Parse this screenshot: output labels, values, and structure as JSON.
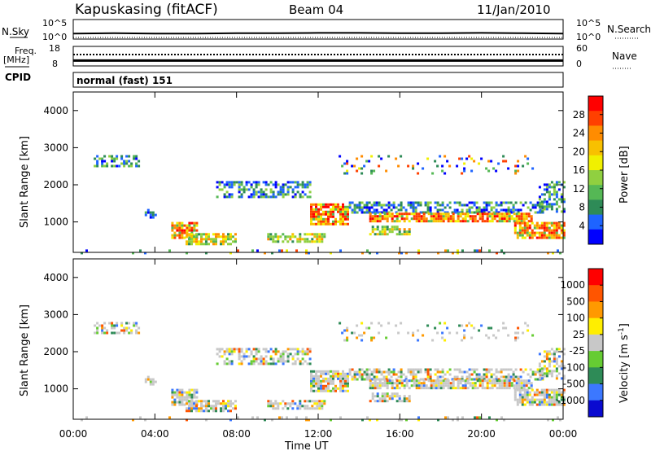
{
  "header": {
    "station": "Kapuskasing (fitACF)",
    "beam": "Beam 04",
    "date": "11/Jan/2010"
  },
  "colors": {
    "power": [
      "#0000ff",
      "#1e64ff",
      "#2e8b57",
      "#55b855",
      "#90d040",
      "#f0f000",
      "#f8c000",
      "#ff8c00",
      "#ff4000",
      "#ff0000"
    ],
    "velocity": [
      "#0a0ad0",
      "#3c78ff",
      "#2e8b57",
      "#66cc33",
      "#c8c8c8",
      "#ffee00",
      "#ff9900",
      "#ff5500",
      "#ff0000"
    ],
    "ground_scatter": "#c8c8c8"
  },
  "chart_data": [
    {
      "type": "line",
      "panel": "nsky",
      "left_label": "N.Sky",
      "right_label": "N.Search",
      "left_ticks": [
        "10^5",
        "10^0"
      ],
      "right_ticks": [
        "10^5",
        "10^0"
      ],
      "xlim": [
        0,
        24
      ],
      "series": [
        {
          "style": "solid",
          "x": [
            0,
            2,
            4,
            6,
            8,
            10,
            12,
            14,
            16,
            18,
            20,
            22,
            24
          ],
          "y": [
            1.2,
            1.3,
            1.2,
            1.2,
            1.3,
            1.3,
            1.4,
            1.4,
            1.3,
            1.3,
            1.4,
            1.3,
            1.2
          ]
        },
        {
          "style": "dotted",
          "x": [
            0,
            24
          ],
          "y": [
            0,
            0
          ]
        }
      ]
    },
    {
      "type": "line",
      "panel": "freq",
      "left_label": "Freq.",
      "left_unit": "[MHz]",
      "right_label": "Nave",
      "left_ticks": [
        "18",
        "8"
      ],
      "right_ticks": [
        "60",
        "0"
      ],
      "xlim": [
        0,
        24
      ],
      "series": [
        {
          "name": "Freq.",
          "style": "solid",
          "x": [
            0,
            24
          ],
          "y": [
            10.3,
            10.3
          ]
        },
        {
          "name": "Nave",
          "style": "dotted",
          "x": [
            0,
            24
          ],
          "y": [
            36,
            36
          ]
        }
      ]
    },
    {
      "type": "table",
      "panel": "cpid",
      "label": "CPID",
      "value": "normal (fast) 151"
    },
    {
      "type": "heatmap",
      "panel": "power",
      "ylabel": "Slant Range [km]",
      "colorbar_label": "Power [dB]",
      "colorbar_ticks": [
        "28",
        "24",
        "20",
        "16",
        "12",
        "8",
        "4"
      ],
      "xlim": [
        0,
        24
      ],
      "ylim": [
        180,
        4500
      ],
      "yticks": [
        "4000",
        "3000",
        "2000",
        "1000"
      ],
      "regions": [
        {
          "t": [
            1.0,
            3.2
          ],
          "r": [
            2500,
            2800
          ],
          "level": "weak"
        },
        {
          "t": [
            3.5,
            4.0
          ],
          "r": [
            1150,
            1350
          ],
          "level": "weak"
        },
        {
          "t": [
            4.8,
            6.0
          ],
          "r": [
            600,
            1000
          ],
          "level": "strong"
        },
        {
          "t": [
            5.5,
            8.0
          ],
          "r": [
            400,
            700
          ],
          "level": "medium"
        },
        {
          "t": [
            7.0,
            11.6
          ],
          "r": [
            1700,
            2100
          ],
          "level": "weak"
        },
        {
          "t": [
            9.5,
            12.3
          ],
          "r": [
            440,
            700
          ],
          "level": "medium"
        },
        {
          "t": [
            11.6,
            13.5
          ],
          "r": [
            950,
            1500
          ],
          "level": "strong"
        },
        {
          "t": [
            13.5,
            23.0
          ],
          "r": [
            1250,
            1550
          ],
          "level": "weak"
        },
        {
          "t": [
            14.5,
            22.5
          ],
          "r": [
            1000,
            1250
          ],
          "level": "strong"
        },
        {
          "t": [
            14.5,
            16.5
          ],
          "r": [
            650,
            900
          ],
          "level": "medium"
        },
        {
          "t": [
            21.6,
            24.0
          ],
          "r": [
            600,
            1000
          ],
          "level": "strong"
        },
        {
          "t": [
            22.8,
            24.0
          ],
          "r": [
            1250,
            2100
          ],
          "level": "weak"
        },
        {
          "t": [
            13.0,
            22.5
          ],
          "r": [
            2300,
            2800
          ],
          "level": "sparse"
        },
        {
          "t": [
            0.0,
            24.0
          ],
          "r": [
            180,
            260
          ],
          "level": "sparse"
        }
      ]
    },
    {
      "type": "heatmap",
      "panel": "velocity",
      "ylabel": "Slant Range [km]",
      "colorbar_label": "Velocity [m s^-1]",
      "colorbar_ticks": [
        "1000",
        "500",
        "100",
        "25",
        "-25",
        "-100",
        "-500",
        "-1000"
      ],
      "xlim": [
        0,
        24
      ],
      "ylim": [
        180,
        4500
      ],
      "yticks": [
        "4000",
        "3000",
        "2000",
        "1000"
      ],
      "xticks": [
        "00:00",
        "04:00",
        "08:00",
        "12:00",
        "16:00",
        "20:00",
        "00:00"
      ],
      "xlabel": "Time UT"
    }
  ]
}
